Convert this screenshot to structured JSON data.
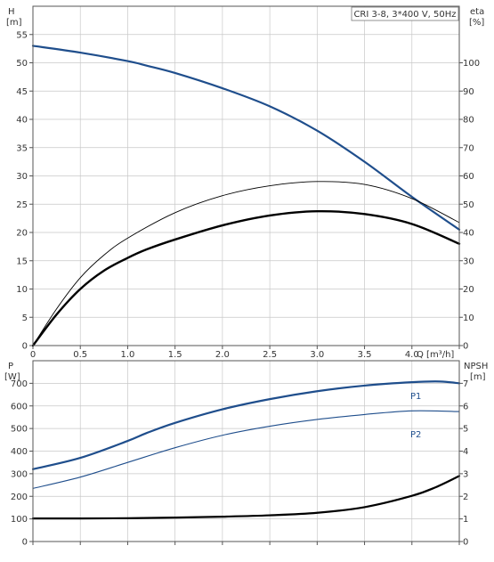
{
  "chart_data": [
    {
      "type": "line",
      "panel": "upper",
      "title": "CRI 3-8, 3*400 V, 50Hz",
      "left_axis": {
        "label_line1": "H",
        "label_line2": "[m]",
        "ylim": [
          0,
          60
        ],
        "ticks": [
          0,
          5,
          10,
          15,
          20,
          25,
          30,
          35,
          40,
          45,
          50,
          55
        ]
      },
      "right_axis": {
        "label_line1": "eta",
        "label_line2": "[%]",
        "ylim": [
          0,
          120
        ],
        "ticks": [
          0,
          10,
          20,
          30,
          40,
          50,
          60,
          70,
          80,
          90,
          100
        ]
      },
      "x_axis": {
        "label": "Q [m³/h]",
        "xlim": [
          0,
          4.5
        ],
        "ticks": [
          "0",
          "0.5",
          "1.0",
          "1.5",
          "2.0",
          "2.5",
          "3.0",
          "3.5",
          "4.0"
        ],
        "tick_values": [
          0,
          0.5,
          1.0,
          1.5,
          2.0,
          2.5,
          3.0,
          3.5,
          4.0
        ]
      },
      "grid": true,
      "series": [
        {
          "key": "head",
          "axis": "left",
          "color": "#1f4e8c",
          "x": [
            0,
            0.5,
            1.0,
            1.2,
            1.5,
            2.0,
            2.5,
            3.0,
            3.5,
            4.0,
            4.5
          ],
          "y": [
            53,
            51.8,
            50.3,
            49.5,
            48.2,
            45.5,
            42.3,
            38.0,
            32.5,
            26.3,
            20.5
          ]
        },
        {
          "key": "eta_thin",
          "axis": "right",
          "color": "#000000",
          "x": [
            0,
            0.25,
            0.5,
            0.75,
            1.0,
            1.5,
            2.0,
            2.5,
            3.0,
            3.5,
            4.0,
            4.5
          ],
          "y": [
            0,
            13,
            24,
            32,
            38,
            47,
            53,
            56.5,
            58,
            57,
            52,
            43.5
          ]
        },
        {
          "key": "eta_thick",
          "axis": "right",
          "color": "#000000",
          "x": [
            0,
            0.25,
            0.5,
            0.75,
            1.0,
            1.2,
            1.5,
            2.0,
            2.5,
            3.0,
            3.5,
            4.0,
            4.5
          ],
          "y": [
            0,
            11,
            20,
            26.5,
            31,
            34,
            37.5,
            42.5,
            46,
            47.5,
            46.5,
            43,
            36
          ]
        }
      ]
    },
    {
      "type": "line",
      "panel": "lower",
      "left_axis": {
        "label_line1": "P",
        "label_line2": "[W]",
        "ylim": [
          0,
          800
        ],
        "ticks": [
          0,
          100,
          200,
          300,
          400,
          500,
          600,
          700
        ]
      },
      "right_axis": {
        "label_line1": "NPSH",
        "label_line2": "[m]",
        "ylim": [
          0,
          8
        ],
        "ticks": [
          0,
          1,
          2,
          3,
          4,
          5,
          6,
          7
        ]
      },
      "x_axis": {
        "xlim": [
          0,
          4.5
        ]
      },
      "grid": true,
      "series": [
        {
          "name": "P1",
          "axis": "left",
          "color": "#1f4e8c",
          "x": [
            0,
            0.5,
            1.0,
            1.2,
            1.5,
            2.0,
            2.5,
            3.0,
            3.5,
            4.0,
            4.3,
            4.5
          ],
          "y": [
            320,
            370,
            445,
            480,
            525,
            585,
            630,
            665,
            690,
            705,
            708,
            700
          ]
        },
        {
          "name": "P2",
          "axis": "left",
          "color": "#1f4e8c",
          "x": [
            0,
            0.5,
            1.0,
            1.5,
            2.0,
            2.5,
            3.0,
            3.5,
            4.0,
            4.5
          ],
          "y": [
            235,
            285,
            350,
            415,
            470,
            510,
            540,
            562,
            578,
            575
          ]
        },
        {
          "key": "npsh",
          "axis": "right",
          "color": "#000000",
          "x": [
            0,
            0.5,
            1.0,
            1.5,
            2.0,
            2.5,
            3.0,
            3.5,
            4.0,
            4.25,
            4.5
          ],
          "y": [
            1.02,
            1.02,
            1.03,
            1.06,
            1.1,
            1.16,
            1.27,
            1.52,
            2.02,
            2.4,
            2.9
          ]
        }
      ]
    }
  ]
}
